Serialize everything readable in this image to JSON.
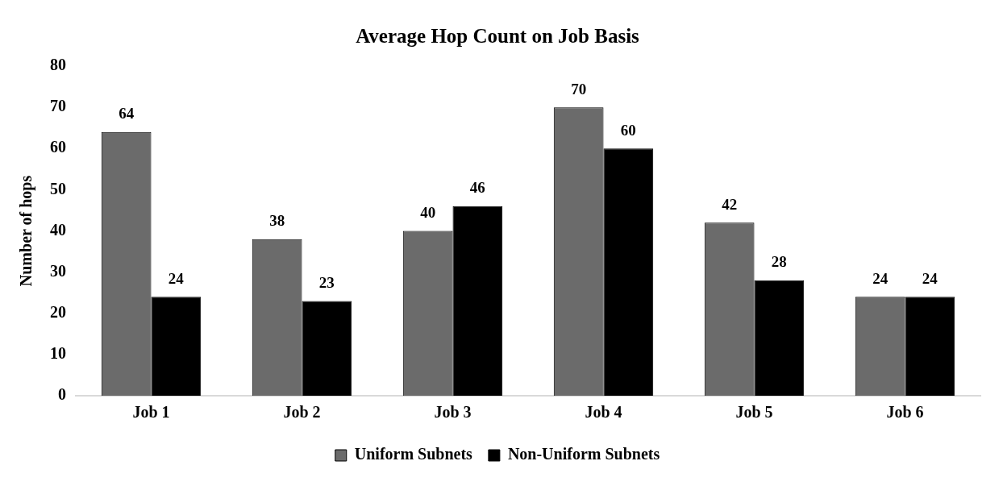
{
  "chart_data": {
    "type": "bar",
    "title": "Average Hop Count on Job Basis",
    "ylabel": "Number of hops",
    "categories": [
      "Job 1",
      "Job 2",
      "Job 3",
      "Job 4",
      "Job 5",
      "Job 6"
    ],
    "series": [
      {
        "name": "Uniform Subnets",
        "color": "#6b6b6b",
        "values": [
          64,
          38,
          40,
          70,
          42,
          24
        ]
      },
      {
        "name": "Non-Uniform Subnets",
        "color": "#000000",
        "values": [
          24,
          23,
          46,
          60,
          28,
          24
        ]
      }
    ],
    "ylim": [
      0,
      80
    ],
    "yticks": [
      0,
      10,
      20,
      30,
      40,
      50,
      60,
      70,
      80
    ],
    "grid": false,
    "legend": "bottom",
    "data_labels": true
  }
}
